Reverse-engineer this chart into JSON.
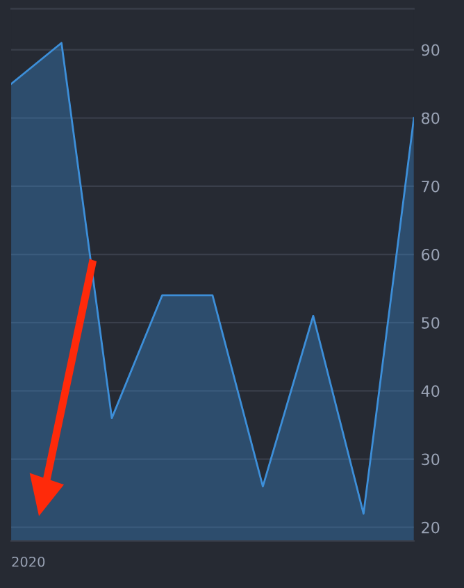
{
  "chart_data": {
    "type": "area",
    "categories": [
      "2020",
      null,
      null,
      null,
      null,
      null,
      null,
      null,
      null
    ],
    "series": [
      {
        "color": "#3d8fd9",
        "values": [
          85,
          91,
          36,
          54,
          54,
          26,
          51,
          22,
          80
        ]
      }
    ],
    "ylim": [
      18,
      96
    ],
    "yticks": [
      20,
      30,
      40,
      50,
      60,
      70,
      80,
      90
    ],
    "grid": "y"
  }
}
